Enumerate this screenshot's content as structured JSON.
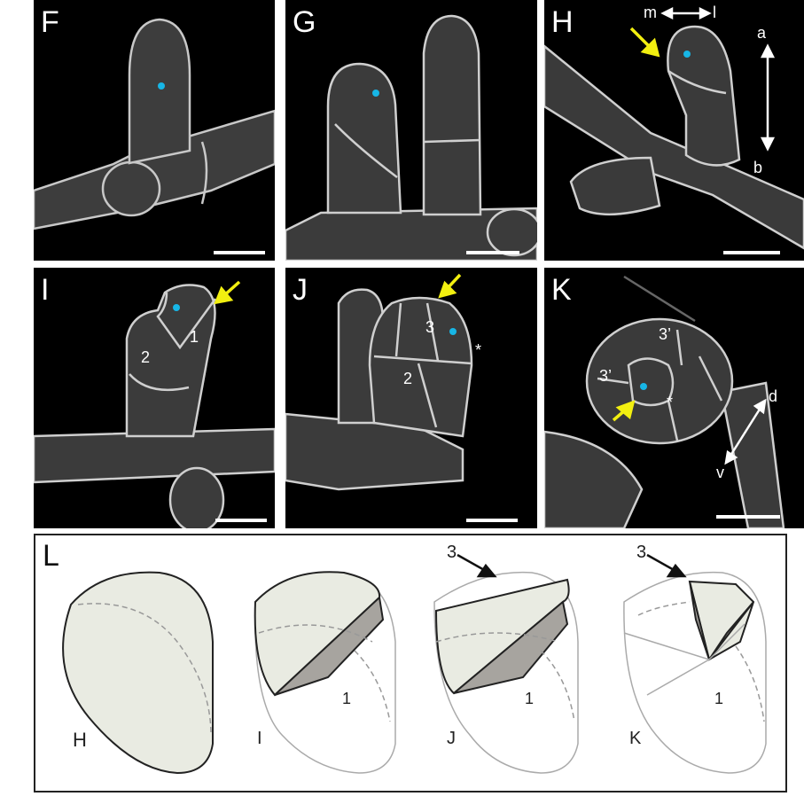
{
  "panels": {
    "F": {
      "label": "F"
    },
    "G": {
      "label": "G"
    },
    "H": {
      "label": "H",
      "axis_ml_left": "m",
      "axis_ml_right": "l",
      "axis_ab_top": "a",
      "axis_ab_bottom": "b"
    },
    "I": {
      "label": "I",
      "cell_1": "1",
      "cell_2": "2"
    },
    "J": {
      "label": "J",
      "cell_3": "3",
      "cell_2": "2",
      "star": "*"
    },
    "K": {
      "label": "K",
      "cell_3p_top": "3’",
      "cell_3p_left": "3’",
      "star": "*",
      "axis_dv_top": "d",
      "axis_dv_bottom": "v"
    }
  },
  "schematic": {
    "label": "L",
    "diagrams": [
      {
        "label": "H"
      },
      {
        "label": "I",
        "cell": "1"
      },
      {
        "label": "J",
        "cell": "1",
        "arrow_label": "3"
      },
      {
        "label": "K",
        "cell": "1",
        "arrow_label": "3"
      }
    ]
  },
  "colors": {
    "marker_dot": "#17b6e6",
    "yellow_arrow": "#f2ef10",
    "fill_light": "#e9ebe2",
    "fill_dark": "#a7a49f"
  }
}
